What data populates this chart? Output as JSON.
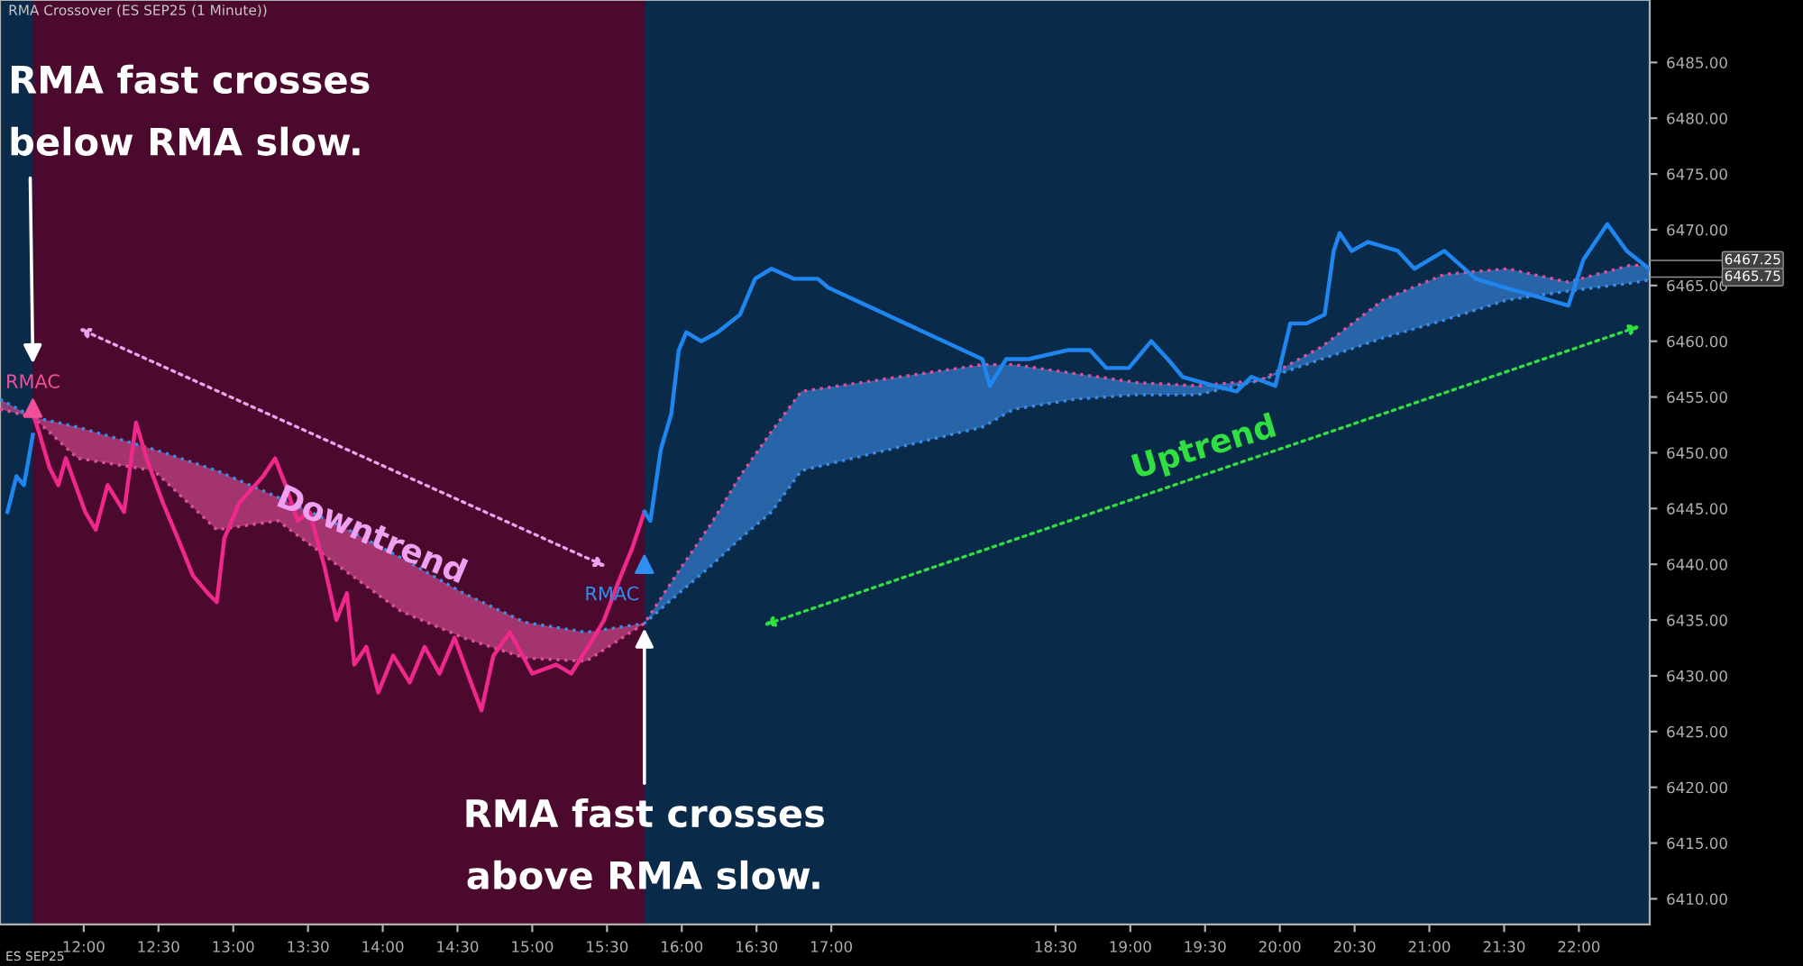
{
  "chart_data": {
    "type": "line",
    "title": "RMA Crossover (ES SEP25 (1 Minute))",
    "xlim": [
      11.44,
      22.474
    ],
    "ylim": [
      6407.7,
      6490.6
    ],
    "xticks": [
      {
        "value": 12,
        "label": "12:00"
      },
      {
        "value": 12.5,
        "label": "12:30"
      },
      {
        "value": 13,
        "label": "13:00"
      },
      {
        "value": 13.5,
        "label": "13:30"
      },
      {
        "value": 14,
        "label": "14:00"
      },
      {
        "value": 14.5,
        "label": "14:30"
      },
      {
        "value": 15,
        "label": "15:00"
      },
      {
        "value": 15.5,
        "label": "15:30"
      },
      {
        "value": 16,
        "label": "16:00"
      },
      {
        "value": 16.5,
        "label": "16:30"
      },
      {
        "value": 17,
        "label": "17:00"
      },
      {
        "value": 18.5,
        "label": "18:30"
      },
      {
        "value": 19,
        "label": "19:00"
      },
      {
        "value": 19.5,
        "label": "19:30"
      },
      {
        "value": 20,
        "label": "20:00"
      },
      {
        "value": 20.5,
        "label": "20:30"
      },
      {
        "value": 21,
        "label": "21:00"
      },
      {
        "value": 21.5,
        "label": "21:30"
      },
      {
        "value": 22,
        "label": "22:00"
      }
    ],
    "yticks": [
      {
        "value": 6410,
        "label": "6410.00"
      },
      {
        "value": 6415,
        "label": "6415.00"
      },
      {
        "value": 6420,
        "label": "6420.00"
      },
      {
        "value": 6425,
        "label": "6425.00"
      },
      {
        "value": 6430,
        "label": "6430.00"
      },
      {
        "value": 6435,
        "label": "6435.00"
      },
      {
        "value": 6440,
        "label": "6440.00"
      },
      {
        "value": 6445,
        "label": "6445.00"
      },
      {
        "value": 6450,
        "label": "6450.00"
      },
      {
        "value": 6455,
        "label": "6455.00"
      },
      {
        "value": 6460,
        "label": "6460.00"
      },
      {
        "value": 6465,
        "label": "6465.00"
      },
      {
        "value": 6470,
        "label": "6470.00"
      },
      {
        "value": 6475,
        "label": "6475.00"
      },
      {
        "value": 6480,
        "label": "6480.00"
      },
      {
        "value": 6485,
        "label": "6485.00"
      }
    ],
    "grid": false,
    "legend": false,
    "bands": [
      {
        "axis": "x",
        "from": 11.66,
        "to": 15.75,
        "color": "#4b0a2d"
      }
    ],
    "series": [
      {
        "color": "#3a8ee8",
        "line_style": "dotted",
        "x": [
          11.44,
          11.66,
          11.96,
          12.47,
          12.89,
          13.3,
          13.71,
          14.12,
          14.54,
          14.95,
          15.36,
          15.75,
          15.98,
          16.19,
          16.39,
          16.6,
          16.8,
          18.01,
          18.22,
          18.63,
          19.04,
          19.45,
          19.87,
          20.28,
          20.69,
          21.1,
          21.52,
          21.93,
          22.34,
          22.47
        ],
        "values": [
          6454.8,
          6453.2,
          6452.3,
          6450.3,
          6448.4,
          6446.0,
          6443.5,
          6440.6,
          6437.4,
          6434.8,
          6433.9,
          6434.7,
          6437.4,
          6439.8,
          6442.3,
          6444.7,
          6448.4,
          6452.3,
          6453.9,
          6454.8,
          6455.2,
          6455.2,
          6456.5,
          6458.4,
          6460.3,
          6461.9,
          6463.7,
          6464.5,
          6465.2,
          6465.5
        ],
        "lower": [
          null,
          null,
          null,
          null,
          null,
          null,
          null,
          null,
          null,
          null,
          null,
          6434.7,
          6437.4,
          6439.8,
          6442.3,
          6444.7,
          6448.4,
          6452.3,
          6453.9,
          6454.8,
          6455.2,
          6455.2,
          6456.5,
          6458.4,
          6460.3,
          6461.9,
          6463.7,
          6464.5,
          6465.2,
          6465.5
        ],
        "upper": [
          null,
          null,
          null,
          null,
          null,
          null,
          null,
          null,
          null,
          null,
          null,
          6434.7,
          6439.4,
          6443.5,
          6447.9,
          6451.9,
          6455.5,
          6457.9,
          6457.9,
          6457.1,
          6456.3,
          6456.0,
          6456.5,
          6459.5,
          6463.7,
          6466.0,
          6466.5,
          6465.3,
          6466.8,
          6466.8
        ]
      },
      {
        "color": "#e0509a",
        "line_style": "dotted",
        "x": [
          11.44,
          11.66,
          11.96,
          12.47,
          12.89,
          13.3,
          13.71,
          14.12,
          14.54,
          14.95,
          15.36,
          15.75,
          15.98,
          16.19,
          16.39,
          16.6,
          16.8,
          18.01,
          18.22,
          18.63,
          19.04,
          19.45,
          19.87,
          20.28,
          20.69,
          21.1,
          21.52,
          21.93,
          22.34,
          22.47
        ],
        "values": [
          6453.9,
          6453.2,
          6449.5,
          6448.4,
          6443.1,
          6443.9,
          6439.8,
          6435.8,
          6433.4,
          6431.6,
          6431.3,
          6434.7,
          6439.4,
          6443.5,
          6447.9,
          6451.9,
          6455.5,
          6457.9,
          6457.9,
          6457.1,
          6456.3,
          6456.0,
          6456.5,
          6459.5,
          6463.7,
          6466.0,
          6466.5,
          6465.3,
          6466.8,
          6466.8
        ],
        "lower": [
          6453.9,
          6453.2,
          6449.5,
          6448.4,
          6443.1,
          6443.9,
          6439.8,
          6435.8,
          6433.4,
          6431.6,
          6431.3,
          6434.7,
          null,
          null,
          null,
          null,
          null,
          null,
          null,
          null,
          null,
          null,
          null,
          null,
          null,
          null,
          null,
          null,
          null,
          null
        ],
        "upper": [
          6454.8,
          6453.2,
          6452.3,
          6450.3,
          6448.4,
          6446.0,
          6443.5,
          6440.6,
          6437.4,
          6434.8,
          6433.9,
          6434.7,
          null,
          null,
          null,
          null,
          null,
          null,
          null,
          null,
          null,
          null,
          null,
          null,
          null,
          null,
          null,
          null,
          null,
          null
        ]
      },
      {
        "color": "#1f86f0",
        "x": [
          11.49,
          11.55,
          11.6,
          11.66
        ],
        "values": [
          6444.7,
          6447.9,
          6447.1,
          6451.6
        ]
      },
      {
        "color": "#f0288c",
        "x": [
          11.66,
          11.7,
          11.77,
          11.83,
          11.88,
          12.01,
          12.08,
          12.16,
          12.27,
          12.35,
          12.42,
          12.53,
          12.63,
          12.73,
          12.83,
          12.89,
          12.94,
          13.04,
          13.2,
          13.28,
          13.35,
          13.43,
          13.51,
          13.61,
          13.69,
          13.76,
          13.81,
          13.89,
          13.97,
          14.07,
          14.18,
          14.28,
          14.38,
          14.48,
          14.59,
          14.66,
          14.74,
          14.85,
          15.0,
          15.16,
          15.26,
          15.41,
          15.48,
          15.57,
          15.67,
          15.75
        ],
        "values": [
          6453.5,
          6451.9,
          6448.7,
          6447.1,
          6449.5,
          6444.7,
          6443.1,
          6447.1,
          6444.7,
          6452.7,
          6449.5,
          6445.5,
          6442.3,
          6439.0,
          6437.4,
          6436.6,
          6442.3,
          6445.5,
          6447.9,
          6449.5,
          6447.1,
          6443.9,
          6444.7,
          6439.8,
          6435.0,
          6437.4,
          6431.0,
          6432.6,
          6428.5,
          6431.8,
          6429.4,
          6432.6,
          6430.2,
          6433.4,
          6429.4,
          6426.9,
          6431.8,
          6433.9,
          6430.2,
          6431.0,
          6430.2,
          6433.4,
          6435.0,
          6438.2,
          6441.5,
          6444.7
        ]
      },
      {
        "color": "#1f86f0",
        "x": [
          15.75,
          15.79,
          15.86,
          15.93,
          15.98,
          16.03,
          16.13,
          16.24,
          16.39,
          16.49,
          16.6,
          16.75,
          16.91,
          16.98,
          18.01,
          18.06,
          18.17,
          18.32,
          18.58,
          18.73,
          18.84,
          18.99,
          19.14,
          19.25,
          19.35,
          19.56,
          19.71,
          19.81,
          19.97,
          20.07,
          20.18,
          20.3,
          20.36,
          20.4,
          20.48,
          20.59,
          20.79,
          20.9,
          21.1,
          21.31,
          21.51,
          21.72,
          21.93,
          22.03,
          22.19,
          22.32,
          22.47
        ],
        "values": [
          6444.7,
          6443.9,
          6450.3,
          6453.5,
          6459.2,
          6460.8,
          6460.0,
          6460.8,
          6462.4,
          6465.6,
          6466.5,
          6465.6,
          6465.6,
          6464.8,
          6458.4,
          6456.0,
          6458.4,
          6458.4,
          6459.2,
          6459.2,
          6457.6,
          6457.6,
          6460.0,
          6458.4,
          6456.8,
          6456.0,
          6455.5,
          6456.8,
          6456.0,
          6461.6,
          6461.6,
          6462.4,
          6468.1,
          6469.7,
          6468.1,
          6468.9,
          6468.1,
          6466.5,
          6468.1,
          6465.6,
          6464.8,
          6464.0,
          6463.2,
          6467.3,
          6470.5,
          6468.1,
          6466.5
        ]
      },
      {
        "type": "scatter",
        "color": "#f0509a",
        "marker": "triangle",
        "x": [
          11.66
        ],
        "values": [
          6454.0
        ]
      },
      {
        "type": "scatter",
        "color": "#2f8ff0",
        "marker": "triangle",
        "x": [
          15.75
        ],
        "values": [
          6440.0
        ]
      }
    ],
    "annotations": [
      {
        "text": "RMA fast crosses\nbelow RMA slow.",
        "x": 11.66,
        "y": 6458.0
      },
      {
        "text": "RMA fast crosses\nabove RMA slow.",
        "x": 15.75,
        "y": 6434.7
      },
      {
        "text": "RMAC",
        "x": 11.66,
        "y": 6455.0
      },
      {
        "text": "RMAC",
        "x": 15.75,
        "y": 6438.5
      },
      "Downtrend",
      "Uptrend",
      "ES SEP25",
      {
        "text": "6467.25",
        "x": 22.47,
        "y": 6467.25
      },
      {
        "text": "6465.75",
        "x": 22.47,
        "y": 6465.75
      }
    ]
  }
}
